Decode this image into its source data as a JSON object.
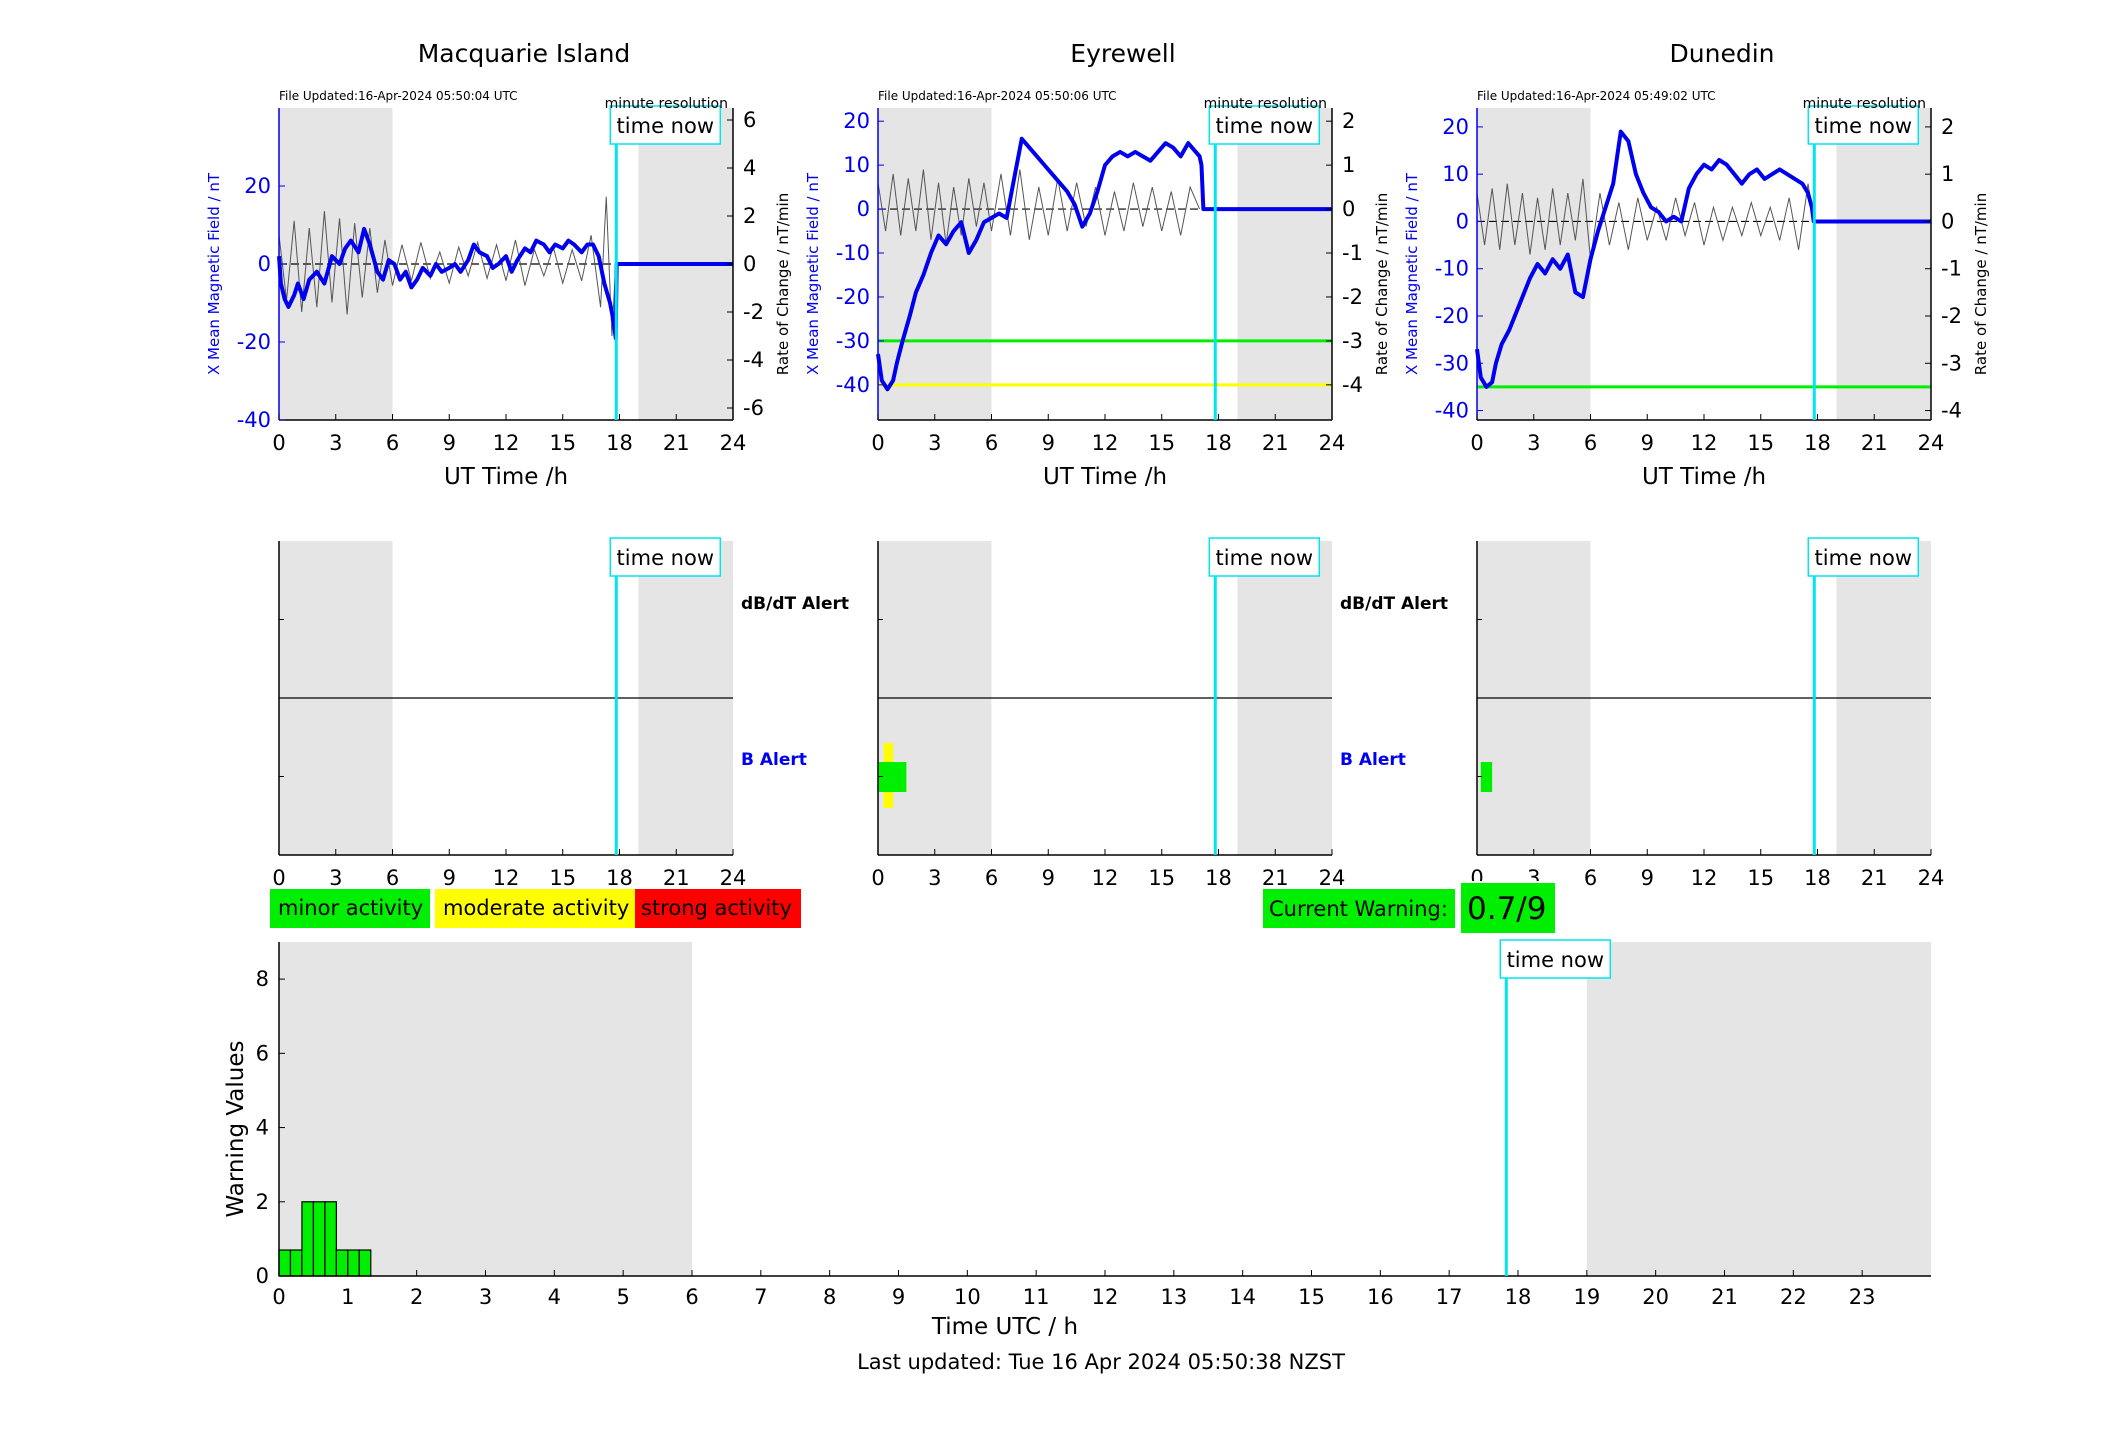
{
  "last_updated": "Last updated: Tue 16 Apr 2024 05:50:38 NZST",
  "time_now_label": "time now",
  "time_now_hour": 17.83,
  "night_shading_hours": [
    [
      0,
      6
    ],
    [
      19,
      24
    ]
  ],
  "colors": {
    "field": "#0000ee",
    "rate": "#555555",
    "time_now": "#00e5ee",
    "shade": "#e5e5e5",
    "minor": "#00ee00",
    "moderate": "#ffff00",
    "strong": "#ff0000"
  },
  "legend": {
    "minor": "minor activity",
    "moderate": "moderate activity",
    "strong": "strong activity"
  },
  "current_warning": {
    "label": "Current Warning:",
    "value": "0.7/9"
  },
  "alert_labels": {
    "dbdt": "dB/dT Alert",
    "b": "B Alert"
  },
  "chart_data": [
    {
      "type": "line",
      "title": "Macquarie Island",
      "file_updated": "File Updated:16-Apr-2024 05:50:04 UTC",
      "resolution_label": "minute resolution",
      "xlabel": "UT Time /h",
      "ylabel": "X Mean Magnetic Field / nT",
      "y2label": "Rate of Change / nT/min",
      "xlim": [
        0,
        24
      ],
      "xticks": [
        0,
        3,
        6,
        9,
        12,
        15,
        18,
        21,
        24
      ],
      "ylim": [
        -40,
        40
      ],
      "yticks": [
        -40,
        -20,
        0,
        20
      ],
      "y2lim": [
        -6.5,
        6.5
      ],
      "y2ticks": [
        -6,
        -4,
        -2,
        0,
        2,
        4,
        6
      ],
      "thresholds": [],
      "series": [
        {
          "role": "field",
          "x": [
            0,
            0.1,
            0.3,
            0.5,
            0.8,
            1.0,
            1.3,
            1.6,
            2.0,
            2.4,
            2.8,
            3.2,
            3.5,
            3.8,
            4.2,
            4.5,
            4.8,
            5.2,
            5.5,
            5.8,
            6.1,
            6.4,
            6.7,
            7.0,
            7.3,
            7.6,
            8.0,
            8.3,
            8.6,
            9.0,
            9.3,
            9.6,
            10.0,
            10.3,
            10.6,
            11.0,
            11.3,
            11.6,
            12.0,
            12.3,
            12.6,
            13.0,
            13.3,
            13.6,
            14.0,
            14.3,
            14.6,
            15.0,
            15.3,
            15.6,
            16.0,
            16.3,
            16.6,
            16.9,
            17.2,
            17.5,
            17.7,
            17.8,
            17.85,
            18.2,
            24
          ],
          "y": [
            2,
            -5,
            -9,
            -11,
            -8,
            -5,
            -9,
            -4,
            -2,
            -5,
            2,
            0,
            4,
            6,
            3,
            9,
            5,
            -2,
            -4,
            1,
            0,
            -4,
            -2,
            -6,
            -4,
            -1,
            -3,
            0,
            -2,
            -1,
            0,
            -2,
            1,
            5,
            3,
            2,
            -1,
            0,
            2,
            -2,
            1,
            4,
            3,
            6,
            5,
            3,
            5,
            4,
            6,
            5,
            3,
            5,
            5,
            2,
            -5,
            -10,
            -15,
            -19,
            0,
            0,
            0
          ]
        },
        {
          "role": "rate",
          "x": [
            0,
            0.4,
            0.8,
            1.2,
            1.6,
            2.0,
            2.4,
            2.8,
            3.2,
            3.6,
            4.0,
            4.4,
            4.8,
            5.2,
            5.6,
            6.0,
            6.5,
            7.0,
            7.5,
            8.0,
            8.5,
            9.0,
            9.5,
            10.0,
            10.5,
            11.0,
            11.5,
            12.0,
            12.5,
            13.0,
            13.5,
            14.0,
            14.5,
            15.0,
            15.5,
            16.0,
            16.5,
            17.0,
            17.3,
            17.6,
            17.8
          ],
          "y": [
            1.2,
            -1.5,
            1.8,
            -2.0,
            1.5,
            -1.8,
            2.2,
            -1.6,
            1.9,
            -2.1,
            1.7,
            -1.4,
            1.5,
            -1.2,
            1.0,
            -0.9,
            0.8,
            -0.7,
            0.9,
            -0.6,
            0.5,
            -0.8,
            0.7,
            -0.5,
            0.9,
            -0.6,
            0.8,
            -0.7,
            1.0,
            -0.9,
            0.6,
            -0.5,
            0.7,
            -0.8,
            0.6,
            -0.7,
            1.2,
            -1.8,
            2.8,
            -3.0,
            0
          ]
        }
      ]
    },
    {
      "type": "line",
      "title": "Eyrewell",
      "file_updated": "File Updated:16-Apr-2024 05:50:06 UTC",
      "resolution_label": "minute resolution",
      "xlabel": "UT Time /h",
      "ylabel": "X Mean Magnetic Field / nT",
      "y2label": "Rate of Change / nT/min",
      "xlim": [
        0,
        24
      ],
      "xticks": [
        0,
        3,
        6,
        9,
        12,
        15,
        18,
        21,
        24
      ],
      "ylim": [
        -48,
        23
      ],
      "yticks": [
        -40,
        -30,
        -20,
        -10,
        0,
        10,
        20
      ],
      "y2lim": [
        -4.8,
        2.3
      ],
      "y2ticks": [
        -4,
        -3,
        -2,
        -1,
        0,
        1,
        2
      ],
      "thresholds": [
        {
          "y": -30,
          "color": "#00ee00"
        },
        {
          "y": -40,
          "color": "#ffff00"
        }
      ],
      "series": [
        {
          "role": "field",
          "x": [
            0,
            0.2,
            0.5,
            0.8,
            1.0,
            1.3,
            1.7,
            2.0,
            2.4,
            2.8,
            3.2,
            3.6,
            4.0,
            4.4,
            4.8,
            5.2,
            5.6,
            6.0,
            6.4,
            6.8,
            7.2,
            7.6,
            8.0,
            8.4,
            8.8,
            9.2,
            9.6,
            10.0,
            10.4,
            10.8,
            11.2,
            11.6,
            12.0,
            12.4,
            12.8,
            13.2,
            13.6,
            14.0,
            14.4,
            14.8,
            15.2,
            15.6,
            16.0,
            16.4,
            16.8,
            17.0,
            17.1,
            17.2,
            24
          ],
          "y": [
            -33,
            -39,
            -41,
            -39,
            -35,
            -30,
            -24,
            -19,
            -15,
            -10,
            -6,
            -8,
            -5,
            -3,
            -10,
            -7,
            -3,
            -2,
            -1,
            -2,
            7,
            16,
            14,
            12,
            10,
            8,
            6,
            4,
            1,
            -4,
            -1,
            4,
            10,
            12,
            13,
            12,
            13,
            12,
            11,
            13,
            15,
            14,
            12,
            15,
            13,
            12,
            10,
            0,
            0
          ]
        },
        {
          "role": "rate",
          "x": [
            0,
            0.4,
            0.8,
            1.2,
            1.6,
            2.0,
            2.4,
            2.8,
            3.2,
            3.6,
            4.0,
            4.4,
            4.8,
            5.2,
            5.6,
            6.0,
            6.5,
            7.0,
            7.5,
            8.0,
            8.5,
            9.0,
            9.5,
            10.0,
            10.5,
            11.0,
            11.5,
            12.0,
            12.5,
            13.0,
            13.5,
            14.0,
            14.5,
            15.0,
            15.5,
            16.0,
            16.5,
            17.0
          ],
          "y": [
            0.6,
            -0.5,
            0.8,
            -0.6,
            0.7,
            -0.5,
            0.9,
            -0.7,
            0.6,
            -0.8,
            0.5,
            -0.6,
            0.7,
            -0.4,
            0.6,
            -0.5,
            0.8,
            -0.6,
            0.9,
            -0.7,
            0.5,
            -0.6,
            0.7,
            -0.5,
            0.6,
            -0.4,
            0.5,
            -0.6,
            0.4,
            -0.5,
            0.6,
            -0.4,
            0.5,
            -0.5,
            0.4,
            -0.6,
            0.5,
            0
          ]
        }
      ]
    },
    {
      "type": "line",
      "title": "Dunedin",
      "file_updated": "File Updated:16-Apr-2024 05:49:02 UTC",
      "resolution_label": "minute resolution",
      "xlabel": "UT Time /h",
      "ylabel": "X Mean Magnetic Field / nT",
      "y2label": "Rate of Change / nT/min",
      "xlim": [
        0,
        24
      ],
      "xticks": [
        0,
        3,
        6,
        9,
        12,
        15,
        18,
        21,
        24
      ],
      "ylim": [
        -42,
        24
      ],
      "yticks": [
        -40,
        -30,
        -20,
        -10,
        0,
        10,
        20
      ],
      "y2lim": [
        -4.2,
        2.4
      ],
      "y2ticks": [
        -4,
        -3,
        -2,
        -1,
        0,
        1,
        2
      ],
      "thresholds": [
        {
          "y": -35,
          "color": "#00ee00"
        }
      ],
      "series": [
        {
          "role": "field",
          "x": [
            0,
            0.2,
            0.5,
            0.8,
            1.0,
            1.3,
            1.7,
            2.0,
            2.4,
            2.8,
            3.2,
            3.6,
            4.0,
            4.4,
            4.8,
            5.2,
            5.6,
            6.0,
            6.4,
            6.8,
            7.2,
            7.6,
            8.0,
            8.4,
            8.8,
            9.2,
            9.6,
            10.0,
            10.4,
            10.8,
            11.2,
            11.6,
            12.0,
            12.4,
            12.8,
            13.2,
            13.6,
            14.0,
            14.4,
            14.8,
            15.2,
            15.6,
            16.0,
            16.4,
            16.8,
            17.2,
            17.5,
            17.7,
            17.8,
            24
          ],
          "y": [
            -27,
            -33,
            -35,
            -34,
            -30,
            -26,
            -23,
            -20,
            -16,
            -12,
            -9,
            -11,
            -8,
            -10,
            -7,
            -15,
            -16,
            -8,
            -2,
            3,
            8,
            19,
            17,
            10,
            6,
            3,
            2,
            0,
            1,
            0,
            7,
            10,
            12,
            11,
            13,
            12,
            10,
            8,
            10,
            11,
            9,
            10,
            11,
            10,
            9,
            8,
            6,
            3,
            0,
            0
          ]
        },
        {
          "role": "rate",
          "x": [
            0,
            0.4,
            0.8,
            1.2,
            1.6,
            2.0,
            2.4,
            2.8,
            3.2,
            3.6,
            4.0,
            4.4,
            4.8,
            5.2,
            5.6,
            6.0,
            6.5,
            7.0,
            7.5,
            8.0,
            8.5,
            9.0,
            9.5,
            10.0,
            10.5,
            11.0,
            11.5,
            12.0,
            12.5,
            13.0,
            13.5,
            14.0,
            14.5,
            15.0,
            15.5,
            16.0,
            16.5,
            17.0,
            17.5,
            17.8
          ],
          "y": [
            0.6,
            -0.5,
            0.7,
            -0.6,
            0.8,
            -0.5,
            0.6,
            -0.7,
            0.5,
            -0.6,
            0.7,
            -0.5,
            0.6,
            -0.4,
            0.9,
            -0.8,
            0.6,
            -0.5,
            0.4,
            -0.6,
            0.5,
            -0.4,
            0.3,
            -0.4,
            0.5,
            -0.3,
            0.4,
            -0.5,
            0.3,
            -0.4,
            0.3,
            -0.3,
            0.4,
            -0.3,
            0.3,
            -0.4,
            0.5,
            -0.6,
            0.8,
            0
          ]
        }
      ]
    },
    {
      "type": "bar",
      "station": "Macquarie Island",
      "xlim": [
        0,
        24
      ],
      "xticks": [
        0,
        3,
        6,
        9,
        12,
        15,
        18,
        21,
        24
      ],
      "alerts": []
    },
    {
      "type": "bar",
      "station": "Eyrewell",
      "xlim": [
        0,
        24
      ],
      "xticks": [
        0,
        3,
        6,
        9,
        12,
        15,
        18,
        21,
        24
      ],
      "alerts": [
        {
          "panel": "B",
          "start": 0.3,
          "end": 0.8,
          "level": "moderate"
        },
        {
          "panel": "B",
          "start": 0,
          "end": 1.5,
          "level": "minor"
        }
      ]
    },
    {
      "type": "bar",
      "station": "Dunedin",
      "xlim": [
        0,
        24
      ],
      "xticks": [
        0,
        3,
        6,
        9,
        12,
        15,
        18,
        21,
        24
      ],
      "alerts": [
        {
          "panel": "B",
          "start": 0.2,
          "end": 0.8,
          "level": "minor"
        }
      ]
    },
    {
      "type": "bar",
      "xlabel": "Time UTC / h",
      "ylabel": "Warning Values",
      "xlim": [
        0,
        24
      ],
      "xticks": [
        0,
        1,
        2,
        3,
        4,
        5,
        6,
        7,
        8,
        9,
        10,
        11,
        12,
        13,
        14,
        15,
        16,
        17,
        18,
        19,
        20,
        21,
        22,
        23
      ],
      "ylim": [
        0,
        9
      ],
      "yticks": [
        0,
        2,
        4,
        6,
        8
      ],
      "bar_width_h": 0.1667,
      "bars_x": [
        0,
        0.1667,
        0.3333,
        0.5,
        0.6667,
        0.8333,
        1.0,
        1.1667
      ],
      "bars_y": [
        0.7,
        0.7,
        2,
        2,
        2,
        0.7,
        0.7,
        0.7
      ]
    }
  ]
}
